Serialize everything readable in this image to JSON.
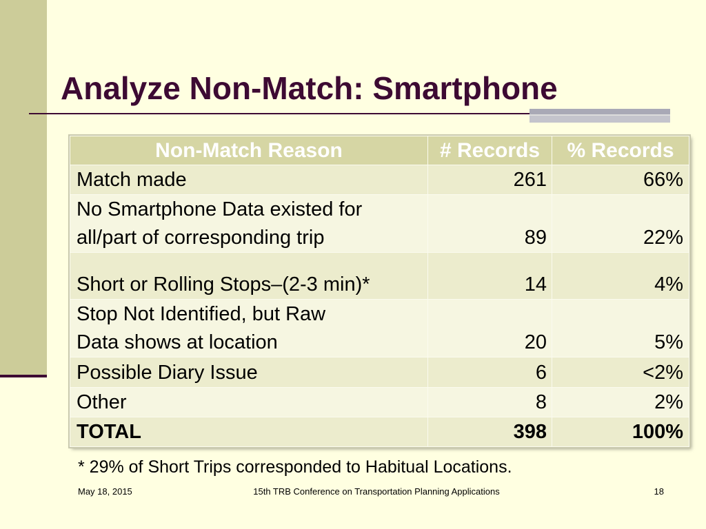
{
  "slide": {
    "title": "Analyze Non-Match: Smartphone",
    "footnote": "* 29% of Short Trips corresponded to Habitual Locations.",
    "footer": {
      "date": "May 18, 2015",
      "conference": "15th TRB Conference on Transportation Planning Applications",
      "page_number": "18"
    }
  },
  "table": {
    "headers": {
      "reason": "Non-Match Reason",
      "records": "# Records",
      "percent": "% Records"
    },
    "rows": [
      {
        "reason": "Match made",
        "records": "261",
        "percent": "66%"
      },
      {
        "reason": "No Smartphone Data existed for\nall/part of corresponding trip",
        "records": "89",
        "percent": "22%"
      },
      {
        "reason": "Short or Rolling Stops–(2-3 min)*",
        "records": "14",
        "percent": "4%"
      },
      {
        "reason": "Stop Not Identified, but Raw\nData shows at location",
        "records": "20",
        "percent": "5%"
      },
      {
        "reason": "Possible Diary Issue",
        "records": "6",
        "percent": "<2%"
      },
      {
        "reason": "Other",
        "records": "8",
        "percent": "2%"
      }
    ],
    "total": {
      "reason": "TOTAL",
      "records": "398",
      "percent": "100%"
    }
  },
  "colors": {
    "title": "#3D0A33",
    "accent_strip": "#CCCC99",
    "background": "#FFFFE1",
    "header_fill": "#D6D6A4",
    "row_dark": "#ECECCD",
    "row_light": "#F6F6E1"
  }
}
